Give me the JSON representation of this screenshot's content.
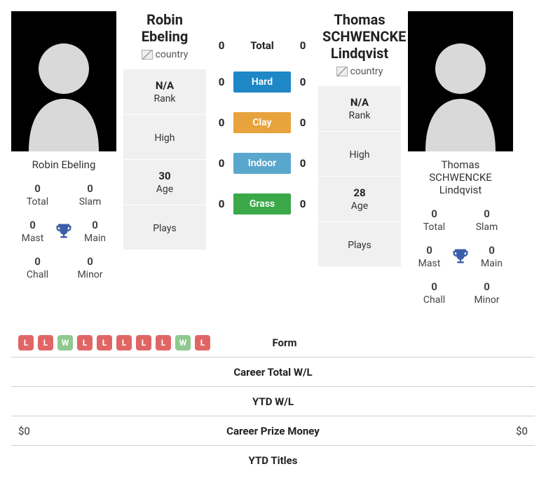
{
  "colors": {
    "hard": "#1e88c7",
    "clay": "#e8a33d",
    "indoor": "#5aa7cd",
    "grass": "#3ba84a",
    "win": "#8fc98f",
    "loss": "#e06666",
    "trophy": "#3a5ea8",
    "cell_bg": "#f0f0f0"
  },
  "left": {
    "name": "Robin Ebeling",
    "flag_alt": "country",
    "stats": {
      "total": {
        "num": "0",
        "lbl": "Total"
      },
      "slam": {
        "num": "0",
        "lbl": "Slam"
      },
      "mast": {
        "num": "0",
        "lbl": "Mast"
      },
      "main": {
        "num": "0",
        "lbl": "Main"
      },
      "chall": {
        "num": "0",
        "lbl": "Chall"
      },
      "minor": {
        "num": "0",
        "lbl": "Minor"
      }
    },
    "bio": {
      "rank": {
        "val": "N/A",
        "lbl": "Rank"
      },
      "high": {
        "val": "",
        "lbl": "High"
      },
      "age": {
        "val": "30",
        "lbl": "Age"
      },
      "plays": {
        "val": "",
        "lbl": "Plays"
      }
    }
  },
  "right": {
    "name": "Thomas SCHWENCKE Lindqvist",
    "flag_alt": "country",
    "stats": {
      "total": {
        "num": "0",
        "lbl": "Total"
      },
      "slam": {
        "num": "0",
        "lbl": "Slam"
      },
      "mast": {
        "num": "0",
        "lbl": "Mast"
      },
      "main": {
        "num": "0",
        "lbl": "Main"
      },
      "chall": {
        "num": "0",
        "lbl": "Chall"
      },
      "minor": {
        "num": "0",
        "lbl": "Minor"
      }
    },
    "bio": {
      "rank": {
        "val": "N/A",
        "lbl": "Rank"
      },
      "high": {
        "val": "",
        "lbl": "High"
      },
      "age": {
        "val": "28",
        "lbl": "Age"
      },
      "plays": {
        "val": "",
        "lbl": "Plays"
      }
    }
  },
  "h2h": {
    "total": {
      "l": "0",
      "r": "0",
      "label": "Total"
    },
    "hard": {
      "l": "0",
      "r": "0",
      "label": "Hard"
    },
    "clay": {
      "l": "0",
      "r": "0",
      "label": "Clay"
    },
    "indoor": {
      "l": "0",
      "r": "0",
      "label": "Indoor"
    },
    "grass": {
      "l": "0",
      "r": "0",
      "label": "Grass"
    }
  },
  "form_left": [
    "L",
    "L",
    "W",
    "L",
    "L",
    "L",
    "L",
    "L",
    "W",
    "L"
  ],
  "bottom_rows": {
    "form": {
      "label": "Form"
    },
    "career_wl": {
      "left": "",
      "label": "Career Total W/L",
      "right": ""
    },
    "ytd_wl": {
      "left": "",
      "label": "YTD W/L",
      "right": ""
    },
    "career_prize": {
      "left": "$0",
      "label": "Career Prize Money",
      "right": "$0"
    },
    "ytd_titles": {
      "left": "",
      "label": "YTD Titles",
      "right": ""
    }
  }
}
